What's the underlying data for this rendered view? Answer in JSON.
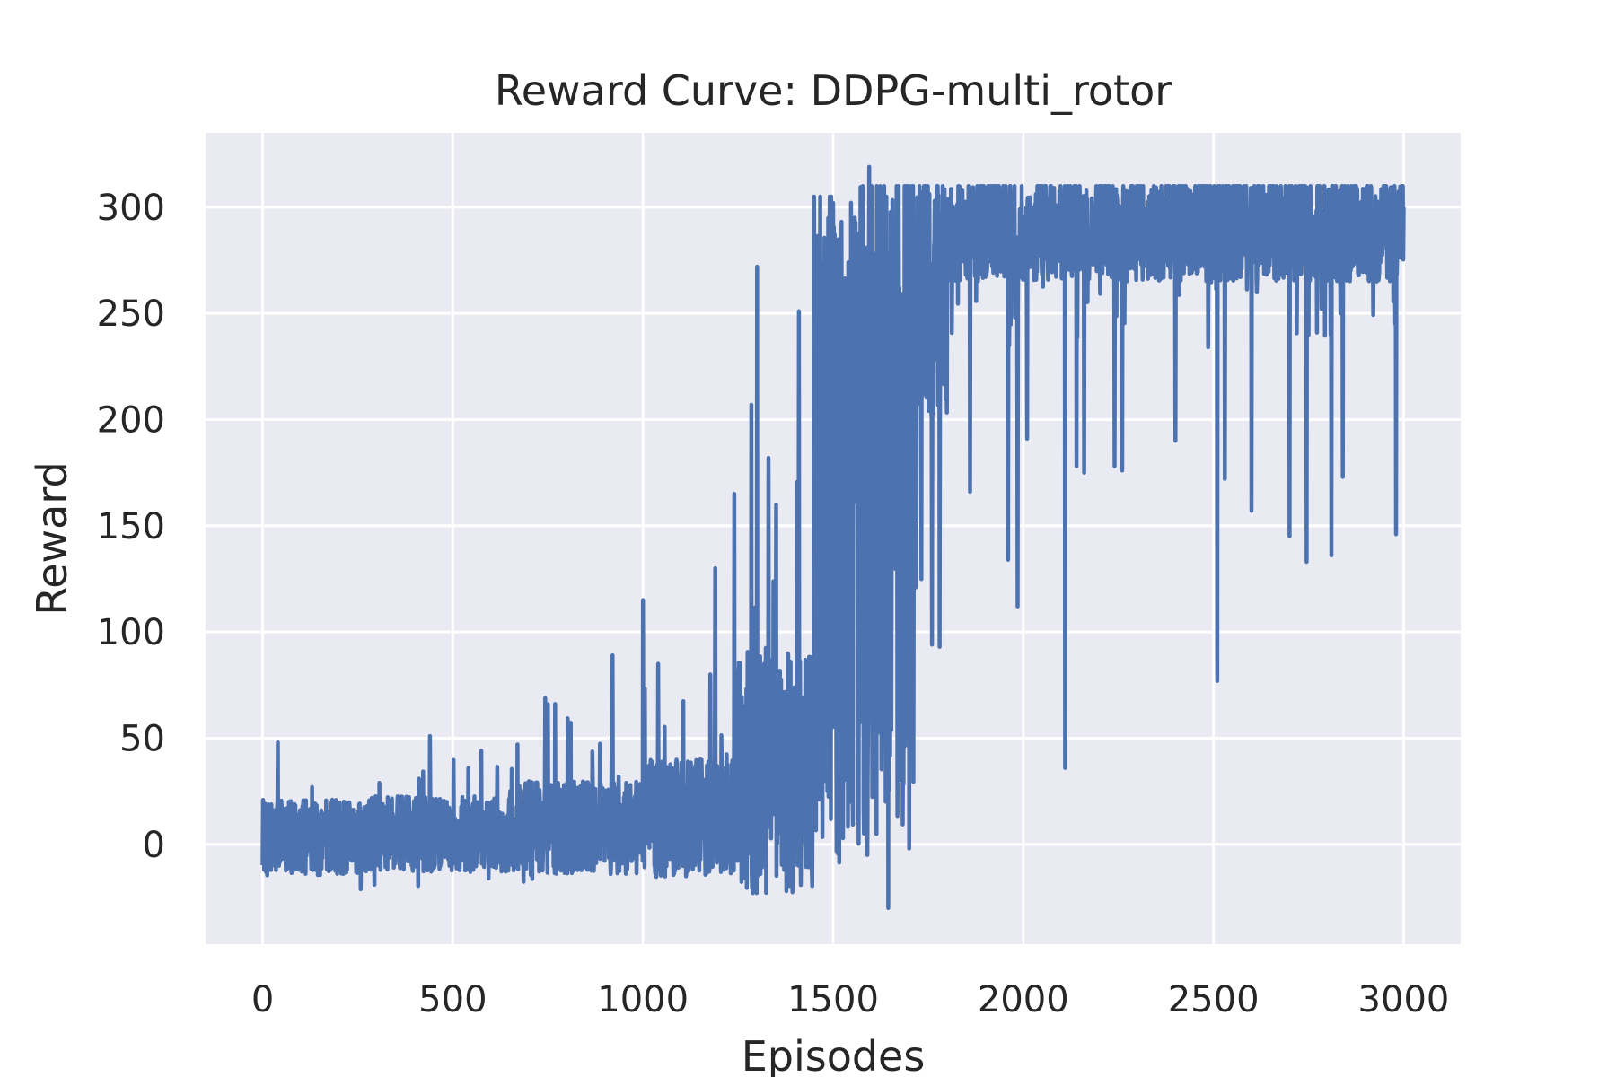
{
  "chart_data": {
    "type": "line",
    "title": "Reward Curve: DDPG-multi_rotor",
    "xlabel": "Episodes",
    "ylabel": "Reward",
    "xlim": [
      -150,
      3150
    ],
    "ylim": [
      -47,
      335
    ],
    "xticks": [
      0,
      500,
      1000,
      1500,
      2000,
      2500,
      3000
    ],
    "yticks": [
      0,
      50,
      100,
      150,
      200,
      250,
      300
    ],
    "grid": true,
    "legend": "none",
    "colors": {
      "plot_bg": "#eaeaf2",
      "grid": "#ffffff",
      "series": "#4c72b0",
      "text": "#262626"
    },
    "series": [
      {
        "color": "#4c72b0",
        "segments": [
          {
            "x_start": 0,
            "x_end": 250,
            "mean": 3,
            "spread": 18,
            "low": -18,
            "high": 32
          },
          {
            "x_start": 250,
            "x_end": 650,
            "mean": 5,
            "spread": 18,
            "low": -22,
            "high": 45
          },
          {
            "x_start": 650,
            "x_end": 1000,
            "mean": 8,
            "spread": 22,
            "low": -22,
            "high": 70
          },
          {
            "x_start": 1000,
            "x_end": 1250,
            "mean": 12,
            "spread": 28,
            "low": -22,
            "high": 90
          },
          {
            "x_start": 1250,
            "x_end": 1450,
            "mean": 35,
            "spread": 60,
            "low": -23,
            "high": 190
          },
          {
            "x_start": 1450,
            "x_end": 1550,
            "mean": 150,
            "spread": 160,
            "low": -25,
            "high": 305
          },
          {
            "x_start": 1550,
            "x_end": 1720,
            "mean": 170,
            "spread": 170,
            "low": -30,
            "high": 310
          },
          {
            "x_start": 1720,
            "x_end": 1800,
            "mean": 260,
            "spread": 60,
            "low": 95,
            "high": 310
          },
          {
            "x_start": 1800,
            "x_end": 3000,
            "mean": 290,
            "spread": 25,
            "low": 230,
            "high": 310
          }
        ],
        "spikes": [
          {
            "x": 40,
            "y": 48
          },
          {
            "x": 440,
            "y": 51
          },
          {
            "x": 670,
            "y": 47
          },
          {
            "x": 750,
            "y": 66
          },
          {
            "x": 920,
            "y": 89
          },
          {
            "x": 1000,
            "y": 115
          },
          {
            "x": 1040,
            "y": 85
          },
          {
            "x": 1190,
            "y": 130
          },
          {
            "x": 1240,
            "y": 165
          },
          {
            "x": 1285,
            "y": 207
          },
          {
            "x": 1300,
            "y": 272
          },
          {
            "x": 1330,
            "y": 182
          },
          {
            "x": 1350,
            "y": 160
          },
          {
            "x": 1410,
            "y": 251
          },
          {
            "x": 1470,
            "y": 265
          },
          {
            "x": 1500,
            "y": 302
          },
          {
            "x": 1590,
            "y": -5
          },
          {
            "x": 1595,
            "y": 319
          },
          {
            "x": 1645,
            "y": -30
          },
          {
            "x": 1660,
            "y": 290
          },
          {
            "x": 1700,
            "y": -2
          },
          {
            "x": 1760,
            "y": 94
          },
          {
            "x": 1780,
            "y": 93
          },
          {
            "x": 1860,
            "y": 166
          },
          {
            "x": 1960,
            "y": 134
          },
          {
            "x": 1985,
            "y": 112
          },
          {
            "x": 2010,
            "y": 191
          },
          {
            "x": 2110,
            "y": 36
          },
          {
            "x": 2140,
            "y": 178
          },
          {
            "x": 2160,
            "y": 175
          },
          {
            "x": 2240,
            "y": 178
          },
          {
            "x": 2260,
            "y": 176
          },
          {
            "x": 2400,
            "y": 190
          },
          {
            "x": 2510,
            "y": 77
          },
          {
            "x": 2530,
            "y": 172
          },
          {
            "x": 2600,
            "y": 157
          },
          {
            "x": 2700,
            "y": 145
          },
          {
            "x": 2745,
            "y": 133
          },
          {
            "x": 2810,
            "y": 136
          },
          {
            "x": 2840,
            "y": 173
          },
          {
            "x": 2980,
            "y": 146
          }
        ]
      }
    ]
  }
}
